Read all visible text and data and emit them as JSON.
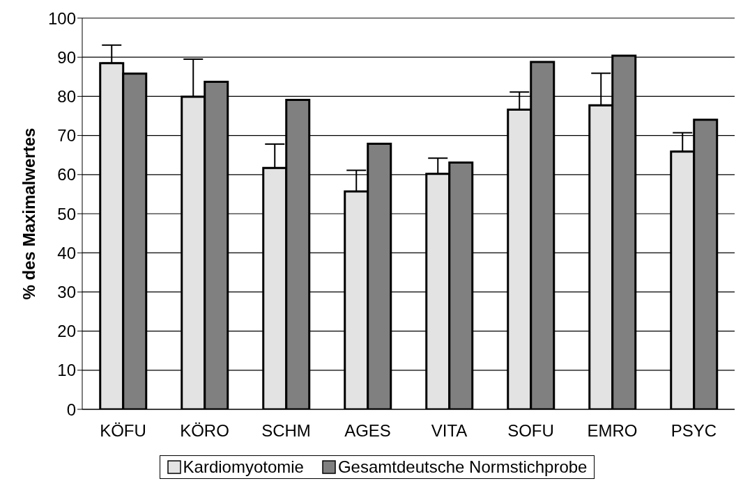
{
  "chart_data": {
    "type": "bar",
    "ylabel": "% des Maximalwertes",
    "categories": [
      "KÖFU",
      "KÖRO",
      "SCHM",
      "AGES",
      "VITA",
      "SOFU",
      "EMRO",
      "PSYC"
    ],
    "series": [
      {
        "name": "Kardiomyotomie",
        "color": "#e3e3e3",
        "values": [
          88.5,
          79.9,
          61.7,
          55.7,
          60.2,
          76.6,
          77.7,
          65.9
        ],
        "errors": [
          [
            88.5,
            93.1
          ],
          [
            79.9,
            89.5
          ],
          [
            61.7,
            67.8
          ],
          [
            55.7,
            61.1
          ],
          [
            60.2,
            64.2
          ],
          [
            76.6,
            81.1
          ],
          [
            77.7,
            85.9
          ],
          [
            65.9,
            70.7
          ]
        ]
      },
      {
        "name": "Gesamtdeutsche Normstichprobe",
        "color": "#808080",
        "values": [
          85.8,
          83.7,
          79.1,
          67.9,
          63.1,
          88.8,
          90.4,
          74.0
        ]
      }
    ],
    "ylim": [
      0,
      100
    ],
    "yticks": [
      0,
      10,
      20,
      30,
      40,
      50,
      60,
      70,
      80,
      90,
      100
    ],
    "grid": "y",
    "legend": "bottom"
  }
}
